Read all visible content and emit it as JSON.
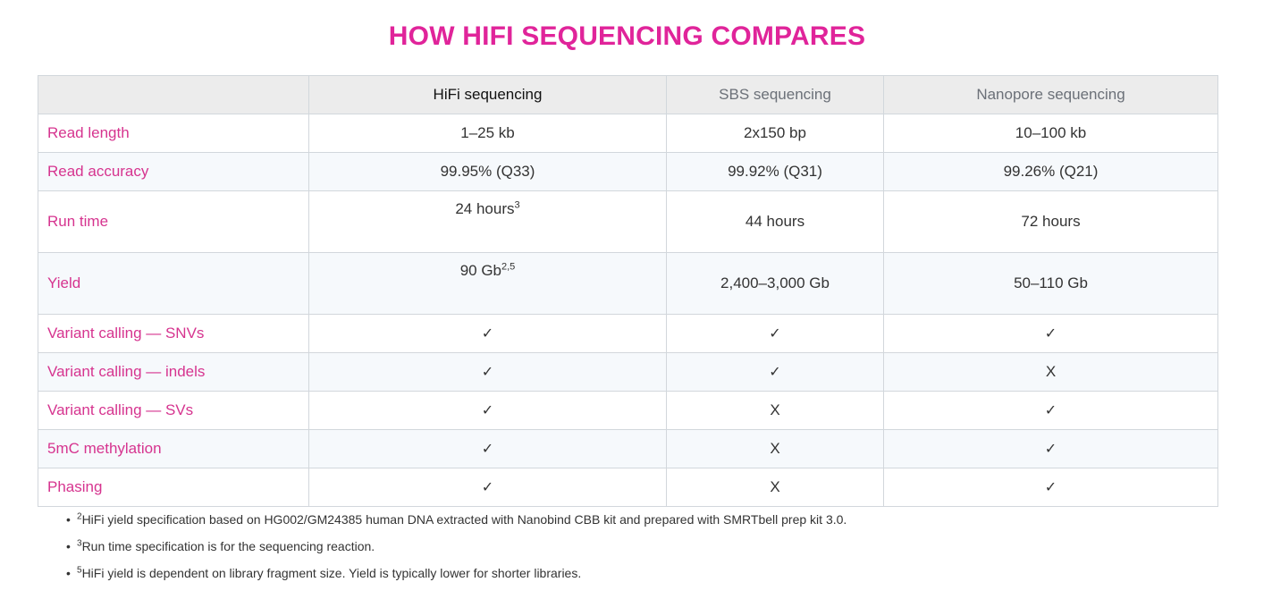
{
  "title": "HOW HIFI SEQUENCING COMPARES",
  "table": {
    "columns": [
      "",
      "HiFi sequencing",
      "SBS sequencing",
      "Nanopore sequencing"
    ],
    "rows": [
      {
        "label": "Read length",
        "cells": [
          {
            "text": "1–25 kb"
          },
          {
            "text": "2x150 bp"
          },
          {
            "text": "10–100 kb"
          }
        ]
      },
      {
        "label": "Read accuracy",
        "cells": [
          {
            "text": "99.95% (Q33)"
          },
          {
            "text": "99.92% (Q31)"
          },
          {
            "text": "99.26% (Q21)"
          }
        ]
      },
      {
        "label": "Run time",
        "cells": [
          {
            "text": "24 hours",
            "sup": "3"
          },
          {
            "text": "44 hours"
          },
          {
            "text": "72 hours"
          }
        ]
      },
      {
        "label": "Yield",
        "cells": [
          {
            "text": "90 Gb",
            "sup": "2,5"
          },
          {
            "text": "2,400–3,000 Gb"
          },
          {
            "text": "50–110 Gb"
          }
        ]
      },
      {
        "label": "Variant calling — SNVs",
        "cells": [
          {
            "text": "✓"
          },
          {
            "text": "✓"
          },
          {
            "text": "✓"
          }
        ]
      },
      {
        "label": "Variant calling — indels",
        "cells": [
          {
            "text": "✓"
          },
          {
            "text": "✓"
          },
          {
            "text": "X"
          }
        ]
      },
      {
        "label": "Variant calling — SVs",
        "cells": [
          {
            "text": "✓"
          },
          {
            "text": "X"
          },
          {
            "text": "✓"
          }
        ]
      },
      {
        "label": "5mC methylation",
        "cells": [
          {
            "text": "✓"
          },
          {
            "text": "X"
          },
          {
            "text": "✓"
          }
        ]
      },
      {
        "label": "Phasing",
        "cells": [
          {
            "text": "✓"
          },
          {
            "text": "X"
          },
          {
            "text": "✓"
          }
        ]
      }
    ]
  },
  "footnotes": [
    {
      "sup": "2",
      "text": "HiFi yield specification based on HG002/GM24385 human DNA extracted with Nanobind CBB kit and prepared with SMRTbell prep kit 3.0."
    },
    {
      "sup": "3",
      "text": "Run time specification is for the sequencing reaction."
    },
    {
      "sup": "5",
      "text": "HiFi yield is dependent on library fragment size. Yield is typically lower for shorter libraries."
    }
  ],
  "colors": {
    "title": "#e0249a",
    "row_label": "#d6348f",
    "check": "#2a8a2a",
    "cross": "#e8333a"
  }
}
